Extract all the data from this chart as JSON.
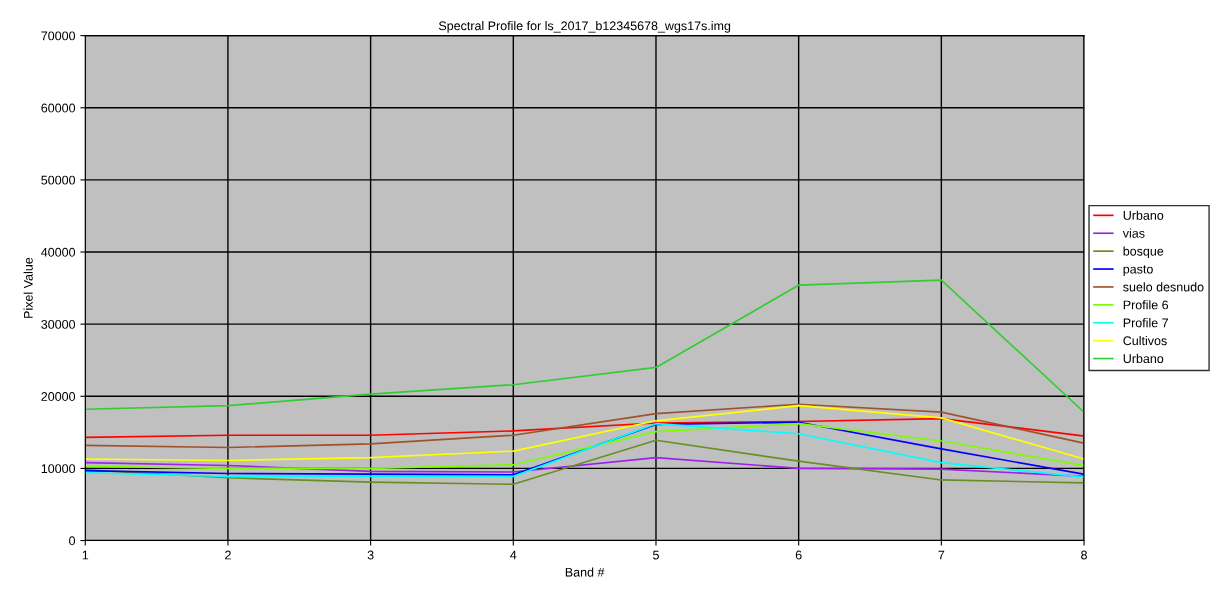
{
  "chart_data": {
    "type": "line",
    "title": "Spectral Profile for ls_2017_b12345678_wgs17s.img",
    "xlabel": "Band #",
    "ylabel": "Pixel Value",
    "x": [
      1,
      2,
      3,
      4,
      5,
      6,
      7,
      8
    ],
    "xlim": [
      1,
      8
    ],
    "xticks": [
      1,
      2,
      3,
      4,
      5,
      6,
      7,
      8
    ],
    "ylim": [
      0,
      70000
    ],
    "yticks": [
      0,
      10000,
      20000,
      30000,
      40000,
      50000,
      60000,
      70000
    ],
    "grid": true,
    "legend": "right",
    "marker": "none",
    "line_style": "solid",
    "series": [
      {
        "name": "Urbano",
        "color": "#ff0000",
        "values": [
          14300,
          14600,
          14600,
          15200,
          16300,
          16500,
          16900,
          14500
        ]
      },
      {
        "name": "vias",
        "color": "#a020f0",
        "values": [
          10800,
          10400,
          9600,
          9500,
          11500,
          10000,
          9900,
          8900
        ]
      },
      {
        "name": "bosque",
        "color": "#6b8e23",
        "values": [
          9800,
          8700,
          8100,
          7800,
          13900,
          11000,
          8400,
          8000
        ]
      },
      {
        "name": "pasto",
        "color": "#0000ff",
        "values": [
          9700,
          9300,
          9200,
          9100,
          16100,
          16400,
          12700,
          9200
        ]
      },
      {
        "name": "suelo desnudo",
        "color": "#a0522d",
        "values": [
          13200,
          12900,
          13400,
          14600,
          17600,
          18900,
          17800,
          13500
        ]
      },
      {
        "name": "Profile 6",
        "color": "#7cfc00",
        "values": [
          10300,
          10000,
          10000,
          10500,
          15100,
          16200,
          13800,
          10400
        ]
      },
      {
        "name": "Profile 7",
        "color": "#00ffff",
        "values": [
          9400,
          8900,
          8900,
          8900,
          16200,
          14800,
          10800,
          8800
        ]
      },
      {
        "name": "Cultivos",
        "color": "#ffff00",
        "values": [
          11300,
          11100,
          11500,
          12400,
          16600,
          18700,
          17000,
          11300
        ]
      },
      {
        "name": "Urbano",
        "color": "#32cd32",
        "values": [
          18200,
          18700,
          20300,
          21600,
          24000,
          35400,
          36100,
          17800
        ]
      }
    ]
  }
}
